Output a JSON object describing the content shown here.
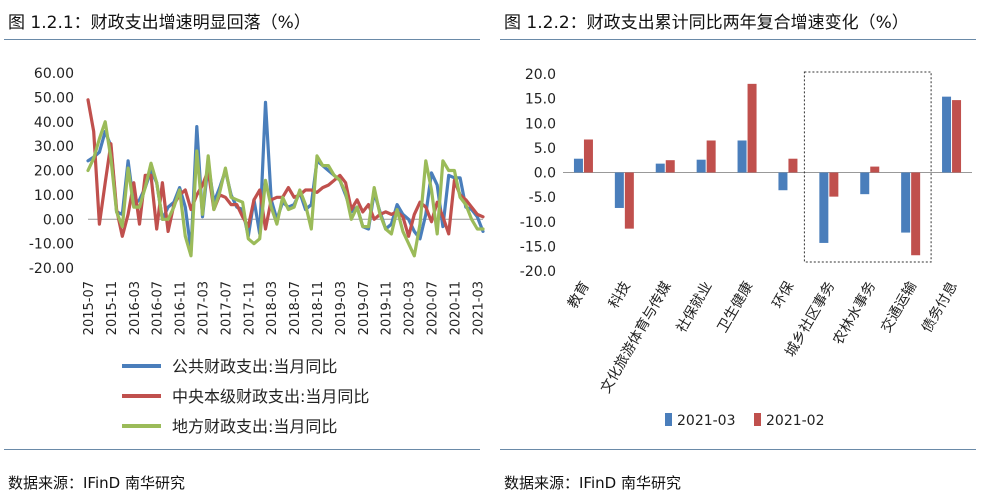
{
  "left": {
    "title": "图 1.2.1：财政支出增速明显回落（%）",
    "source": "数据来源：IFinD  南华研究"
  },
  "right": {
    "title": "图 1.2.2：财政支出累计同比两年复合增速变化（%）",
    "source": "数据来源：IFinD  南华研究"
  },
  "colors": {
    "blue": "#4a7ebb",
    "red": "#c0504d",
    "green": "#9bbb59",
    "rule": "#6a8aa8"
  },
  "chart_data": [
    {
      "type": "line",
      "title": "财政支出增速明显回落（%）",
      "ylim": [
        -20,
        60
      ],
      "yticks": [
        "60.00",
        "50.00",
        "40.00",
        "30.00",
        "20.00",
        "10.00",
        "0.00",
        "-10.00",
        "-20.00"
      ],
      "x_start": "2015-07",
      "x_end": "2021-03",
      "xtick_labels": [
        "2015-07",
        "2015-11",
        "2016-03",
        "2016-07",
        "2016-11",
        "2017-03",
        "2017-07",
        "2017-11",
        "2018-03",
        "2018-07",
        "2018-11",
        "2019-03",
        "2019-07",
        "2019-11",
        "2020-03",
        "2020-07",
        "2020-11",
        "2021-03"
      ],
      "series": [
        {
          "name": "公共财政支出:当月同比",
          "color": "#4a7ebb",
          "values": [
            24,
            25.5,
            27.5,
            36,
            30,
            3,
            2,
            24,
            6,
            8,
            13,
            20,
            15,
            0,
            5,
            7,
            13,
            5,
            -13,
            38,
            1,
            23,
            7,
            13,
            20,
            10,
            5,
            4,
            -7,
            8,
            -6,
            48,
            8,
            0,
            7,
            5,
            6,
            11,
            4,
            6,
            24,
            22,
            20,
            18,
            16,
            10,
            3,
            5,
            -3,
            -4,
            11,
            3,
            -4,
            -2,
            6,
            2,
            0,
            -5,
            -8,
            2,
            19,
            14,
            -3,
            18,
            17,
            17,
            5,
            4,
            1,
            -5
          ]
        },
        {
          "name": "中央本级财政支出:当月同比",
          "color": "#c0504d",
          "values": [
            49,
            36,
            -2,
            15,
            31,
            4,
            -7,
            2,
            15,
            -2,
            18,
            18,
            -4,
            15,
            -5,
            6,
            10,
            12,
            4,
            10,
            14,
            20,
            4,
            10,
            9,
            6,
            6,
            1,
            -3,
            8,
            12,
            -4,
            8,
            9,
            9,
            13,
            9,
            10,
            12,
            12,
            11,
            13,
            14,
            16,
            18,
            15,
            4,
            8,
            3,
            6,
            0,
            2,
            3,
            2,
            3,
            1,
            -7,
            2,
            7,
            5,
            -1,
            7,
            1,
            -6,
            16,
            10,
            8,
            5,
            2,
            1
          ]
        },
        {
          "name": "地方财政支出:当月同比",
          "color": "#9bbb59",
          "values": [
            20,
            25,
            33,
            40,
            25,
            3,
            -3,
            21,
            5,
            5,
            13,
            23,
            15,
            0,
            0,
            5,
            12,
            -7,
            -15,
            28,
            2,
            26,
            4,
            11,
            21,
            9,
            8,
            7,
            -8,
            -10,
            -8,
            16,
            5,
            -2,
            9,
            4,
            5,
            12,
            6,
            -4,
            26,
            22,
            22,
            18,
            16,
            11,
            0,
            5,
            -3,
            -3,
            13,
            2,
            -4,
            -6,
            4,
            -5,
            -10,
            -15,
            -2,
            24,
            12,
            -6,
            24,
            20,
            20,
            9,
            6,
            0,
            -4,
            -4
          ]
        }
      ]
    },
    {
      "type": "bar",
      "title": "财政支出累计同比两年复合增速变化（%）",
      "ylim": [
        -20,
        20
      ],
      "yticks": [
        "20.0",
        "15.0",
        "10.0",
        "5.0",
        "0.0",
        "-5.0",
        "-10.0",
        "-15.0",
        "-20.0"
      ],
      "categories": [
        "教育",
        "科技",
        "文化旅游体育与传媒",
        "社保就业",
        "卫生健康",
        "环保",
        "城乡社区事务",
        "农林水事务",
        "交通运输",
        "债务付息"
      ],
      "series": [
        {
          "name": "2021-03",
          "color": "#4a7ebb",
          "values": [
            2.8,
            -7.2,
            1.8,
            2.6,
            6.5,
            -3.6,
            -14.3,
            -4.4,
            -12.2,
            15.4
          ]
        },
        {
          "name": "2021-02",
          "color": "#c0504d",
          "values": [
            6.7,
            -11.4,
            2.5,
            6.5,
            18.0,
            2.8,
            -4.9,
            1.2,
            -16.8,
            14.7
          ]
        }
      ],
      "highlight_categories": [
        "城乡社区事务",
        "农林水事务",
        "交通运输"
      ]
    }
  ]
}
